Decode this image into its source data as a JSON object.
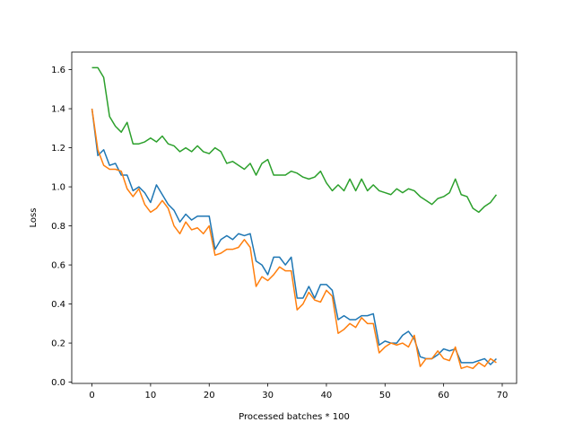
{
  "chart_data": {
    "type": "line",
    "title": "",
    "xlabel": "Processed batches * 100",
    "ylabel": "Loss",
    "xlim": [
      -3.45,
      72.45
    ],
    "ylim": [
      -0.0066,
      1.69
    ],
    "xticks": [
      0,
      10,
      20,
      30,
      40,
      50,
      60,
      70
    ],
    "yticks": [
      0.0,
      0.2,
      0.4,
      0.6,
      0.8,
      1.0,
      1.2,
      1.4,
      1.6
    ],
    "grid": false,
    "legend": "none",
    "series": [
      {
        "color": "#1f77b4",
        "x": [
          0,
          1,
          2,
          3,
          4,
          5,
          6,
          7,
          8,
          9,
          10,
          11,
          12,
          13,
          14,
          15,
          16,
          17,
          18,
          19,
          20,
          21,
          22,
          23,
          24,
          25,
          26,
          27,
          28,
          29,
          30,
          31,
          32,
          33,
          34,
          35,
          36,
          37,
          38,
          39,
          40,
          41,
          42,
          43,
          44,
          45,
          46,
          47,
          48,
          49,
          50,
          51,
          52,
          53,
          54,
          55,
          56,
          57,
          58,
          59,
          60,
          61,
          62,
          63,
          64,
          65,
          66,
          67,
          68,
          69
        ],
        "values": [
          1.4,
          1.16,
          1.19,
          1.11,
          1.12,
          1.06,
          1.06,
          0.98,
          1.0,
          0.97,
          0.92,
          1.01,
          0.96,
          0.91,
          0.88,
          0.82,
          0.86,
          0.83,
          0.85,
          0.85,
          0.85,
          0.68,
          0.73,
          0.75,
          0.73,
          0.76,
          0.75,
          0.76,
          0.62,
          0.6,
          0.55,
          0.64,
          0.64,
          0.6,
          0.64,
          0.43,
          0.43,
          0.49,
          0.43,
          0.5,
          0.5,
          0.47,
          0.32,
          0.34,
          0.32,
          0.32,
          0.34,
          0.34,
          0.35,
          0.19,
          0.21,
          0.2,
          0.2,
          0.24,
          0.26,
          0.22,
          0.13,
          0.12,
          0.12,
          0.14,
          0.17,
          0.16,
          0.17,
          0.1,
          0.1,
          0.1,
          0.11,
          0.12,
          0.09,
          0.12
        ]
      },
      {
        "color": "#ff7f0e",
        "x": [
          0,
          1,
          2,
          3,
          4,
          5,
          6,
          7,
          8,
          9,
          10,
          11,
          12,
          13,
          14,
          15,
          16,
          17,
          18,
          19,
          20,
          21,
          22,
          23,
          24,
          25,
          26,
          27,
          28,
          29,
          30,
          31,
          32,
          33,
          34,
          35,
          36,
          37,
          38,
          39,
          40,
          41,
          42,
          43,
          44,
          45,
          46,
          47,
          48,
          49,
          50,
          51,
          52,
          53,
          54,
          55,
          56,
          57,
          58,
          59,
          60,
          61,
          62,
          63,
          64,
          65,
          66,
          67,
          68,
          69
        ],
        "values": [
          1.4,
          1.19,
          1.11,
          1.09,
          1.09,
          1.08,
          0.99,
          0.95,
          0.99,
          0.91,
          0.87,
          0.89,
          0.93,
          0.89,
          0.8,
          0.76,
          0.82,
          0.78,
          0.79,
          0.76,
          0.8,
          0.65,
          0.66,
          0.68,
          0.68,
          0.69,
          0.73,
          0.69,
          0.49,
          0.54,
          0.52,
          0.55,
          0.59,
          0.57,
          0.57,
          0.37,
          0.4,
          0.46,
          0.42,
          0.41,
          0.47,
          0.44,
          0.25,
          0.27,
          0.3,
          0.28,
          0.33,
          0.3,
          0.3,
          0.15,
          0.18,
          0.2,
          0.19,
          0.2,
          0.18,
          0.24,
          0.08,
          0.12,
          0.12,
          0.16,
          0.12,
          0.11,
          0.18,
          0.07,
          0.08,
          0.07,
          0.1,
          0.08,
          0.12,
          0.1
        ]
      },
      {
        "color": "#2ca02c",
        "x": [
          0,
          1,
          2,
          3,
          4,
          5,
          6,
          7,
          8,
          9,
          10,
          11,
          12,
          13,
          14,
          15,
          16,
          17,
          18,
          19,
          20,
          21,
          22,
          23,
          24,
          25,
          26,
          27,
          28,
          29,
          30,
          31,
          32,
          33,
          34,
          35,
          36,
          37,
          38,
          39,
          40,
          41,
          42,
          43,
          44,
          45,
          46,
          47,
          48,
          49,
          50,
          51,
          52,
          53,
          54,
          55,
          56,
          57,
          58,
          59,
          60,
          61,
          62,
          63,
          64,
          65,
          66,
          67,
          68,
          69
        ],
        "values": [
          1.61,
          1.61,
          1.56,
          1.36,
          1.31,
          1.28,
          1.33,
          1.22,
          1.22,
          1.23,
          1.25,
          1.23,
          1.26,
          1.22,
          1.21,
          1.18,
          1.2,
          1.18,
          1.21,
          1.18,
          1.17,
          1.2,
          1.18,
          1.12,
          1.13,
          1.11,
          1.09,
          1.12,
          1.06,
          1.12,
          1.14,
          1.06,
          1.06,
          1.06,
          1.08,
          1.07,
          1.05,
          1.04,
          1.05,
          1.08,
          1.02,
          0.98,
          1.01,
          0.98,
          1.04,
          0.98,
          1.04,
          0.98,
          1.01,
          0.98,
          0.97,
          0.96,
          0.99,
          0.97,
          0.99,
          0.98,
          0.95,
          0.93,
          0.91,
          0.94,
          0.95,
          0.97,
          1.04,
          0.96,
          0.95,
          0.89,
          0.87,
          0.9,
          0.92,
          0.96
        ]
      }
    ]
  }
}
